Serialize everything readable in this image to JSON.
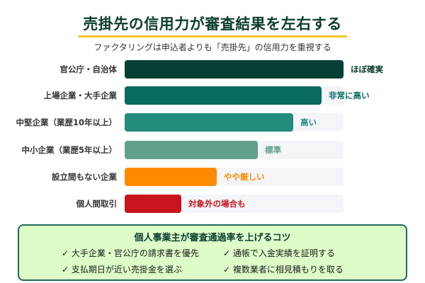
{
  "header": {
    "title": "売掛先の信用力が審査結果を左右する",
    "subtitle": "ファクタリングは申込者よりも「売掛先」の信用力を重視する",
    "underline_color": "#f4c22b"
  },
  "chart_data": {
    "type": "bar",
    "orientation": "horizontal",
    "title": "売掛先の信用力が審査結果を左右する",
    "subtitle": "ファクタリングは申込者よりも「売掛先」の信用力を重視する",
    "xlabel": "",
    "ylabel": "",
    "grid": false,
    "legend": null,
    "categories": [
      "官公庁・自治体",
      "上場企業・大手企業",
      "中堅企業（業歴10年以上）",
      "中小企業（業歴5年以上）",
      "設立間もない企業",
      "個人間取引"
    ],
    "values": [
      100,
      90,
      77,
      61,
      42,
      26
    ],
    "value_labels": [
      "ほぼ確実",
      "非常に高い",
      "高い",
      "標準",
      "やや厳しい",
      "対象外の場合も"
    ],
    "colors": [
      "#063f33",
      "#076b5f",
      "#238c7a",
      "#63a08a",
      "#ff8a00",
      "#c8141e"
    ],
    "xlim": [
      0,
      100
    ]
  },
  "rows": [
    {
      "label": "官公庁・自治体",
      "value": 100,
      "value_label": "ほぼ確実",
      "color": "#063f33",
      "label_color": "#0b3d2e"
    },
    {
      "label": "上場企業・大手企業",
      "value": 90,
      "value_label": "非常に高い",
      "color": "#076b5f",
      "label_color": "#076b5f"
    },
    {
      "label": "中堅企業（業歴10年以上）",
      "value": 77,
      "value_label": "高い",
      "color": "#238c7a",
      "label_color": "#238c7a"
    },
    {
      "label": "中小企業（業歴5年以上）",
      "value": 61,
      "value_label": "標準",
      "color": "#63a08a",
      "label_color": "#63a08a"
    },
    {
      "label": "設立間もない企業",
      "value": 42,
      "value_label": "やや厳しい",
      "color": "#ff8a00",
      "label_color": "#ff8a00"
    },
    {
      "label": "個人間取引",
      "value": 26,
      "value_label": "対象外の場合も",
      "color": "#c8141e",
      "label_color": "#c8141e"
    }
  ],
  "tips": {
    "title": "個人事業主が審査通過率を上げるコツ",
    "items": [
      "✓ 大手企業・官公庁の請求書を優先",
      "✓ 通帳で入金実績を証明する",
      "✓ 支払期日が近い売掛金を選ぶ",
      "✓ 複数業者に相見積もりを取る"
    ],
    "bg_color": "#ddfcc8",
    "border_color": "#1f6b5a"
  }
}
